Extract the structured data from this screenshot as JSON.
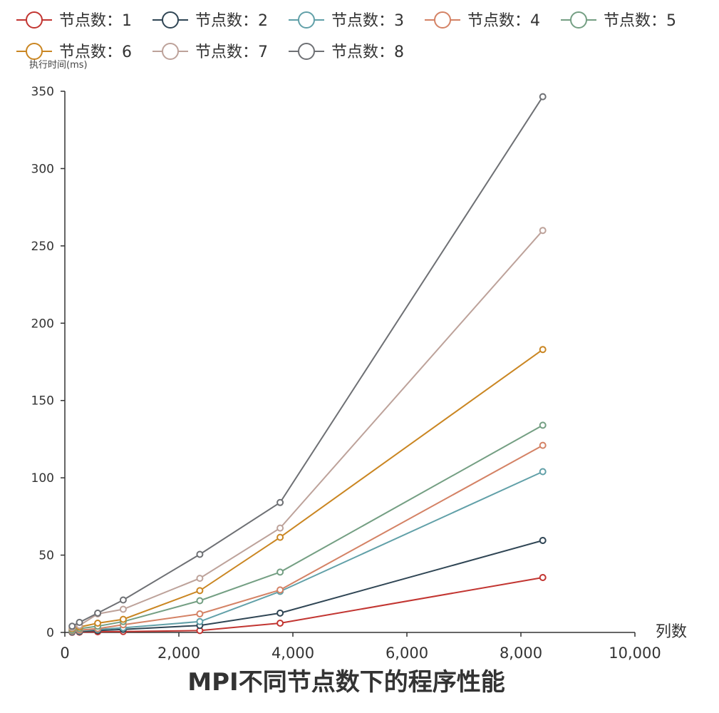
{
  "chart_data": {
    "type": "line",
    "title": "MPI不同节点数下的程序性能",
    "xlabel": "列数",
    "ylabel": "执行时间(ms)",
    "xlim": [
      0,
      10000
    ],
    "ylim": [
      0,
      350
    ],
    "xticks": [
      0,
      2000,
      4000,
      6000,
      8000,
      10000
    ],
    "xtick_labels": [
      "0",
      "2,000",
      "4,000",
      "6,000",
      "8,000",
      "10,000"
    ],
    "yticks": [
      0,
      50,
      100,
      150,
      200,
      250,
      300,
      350
    ],
    "ytick_labels": [
      "0",
      "50",
      "100",
      "150",
      "200",
      "250",
      "300",
      "350"
    ],
    "grid": false,
    "legend_position": "top-left",
    "x": [
      128,
      256,
      576,
      1024,
      2368,
      3776,
      8384
    ],
    "series": [
      {
        "name": "节点数：1",
        "color": "#c23531",
        "values": [
          0.1,
          0.2,
          0.4,
          0.6,
          1.2,
          6.0,
          35.5
        ]
      },
      {
        "name": "节点数：2",
        "color": "#2f4554",
        "values": [
          0.3,
          0.6,
          1.2,
          2.0,
          4.5,
          12.5,
          59.5
        ]
      },
      {
        "name": "节点数：3",
        "color": "#61a0a8",
        "values": [
          0.6,
          1.0,
          2.0,
          3.0,
          7.0,
          26.5,
          104.0
        ]
      },
      {
        "name": "节点数：4",
        "color": "#d48265",
        "values": [
          1.0,
          1.5,
          2.5,
          5.0,
          12.0,
          27.5,
          121.0
        ]
      },
      {
        "name": "节点数：5",
        "color": "#749f83",
        "values": [
          1.5,
          2.5,
          4.0,
          7.0,
          20.5,
          39.0,
          134.0
        ]
      },
      {
        "name": "节点数：6",
        "color": "#ca8622",
        "values": [
          2.5,
          3.5,
          6.0,
          8.5,
          27.0,
          61.5,
          183.0
        ]
      },
      {
        "name": "节点数：7",
        "color": "#bda29a",
        "values": [
          3.0,
          4.5,
          12.0,
          15.0,
          35.0,
          67.5,
          260.0
        ]
      },
      {
        "name": "节点数：8",
        "color": "#6e7074",
        "values": [
          4.0,
          6.5,
          12.5,
          21.0,
          50.5,
          84.0,
          346.5
        ]
      }
    ]
  }
}
